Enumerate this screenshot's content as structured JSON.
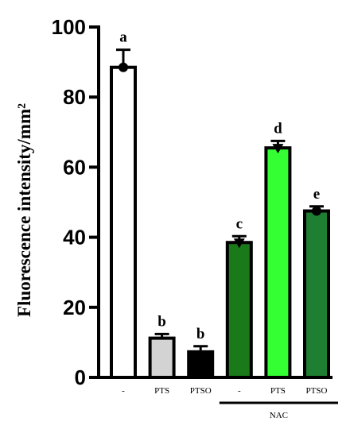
{
  "chart_data": {
    "type": "bar",
    "ylabel": "Fluorescence intensity/mm²",
    "xlabel": "",
    "ylim": [
      0,
      100
    ],
    "yticks": [
      0,
      20,
      40,
      60,
      80,
      100
    ],
    "grid": false,
    "categories": [
      "-",
      "PTS",
      "PTSO",
      "-",
      "PTS",
      "PTSO"
    ],
    "values": [
      88.5,
      11.2,
      7.3,
      38.5,
      65.5,
      47.5
    ],
    "errors": [
      5.0,
      1.2,
      1.6,
      1.8,
      2.0,
      1.3
    ],
    "markers": [
      "circle",
      "none",
      "none",
      "triangle",
      "triangle",
      "circle"
    ],
    "significance": [
      "a",
      "b",
      "b",
      "c",
      "d",
      "e"
    ],
    "colors": [
      "#ffffff",
      "#d3d3d3",
      "#000000",
      "#1a7a1a",
      "#33ff33",
      "#1e7f32"
    ],
    "groups": [
      {
        "label": "NAC",
        "start": 3,
        "end": 5
      }
    ]
  }
}
